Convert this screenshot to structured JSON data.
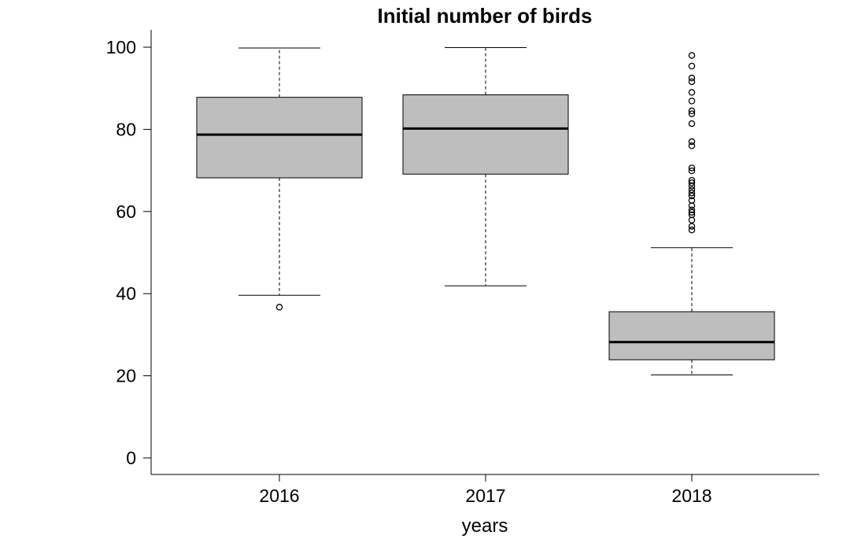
{
  "chart_data": {
    "type": "box",
    "title": "Initial number of birds",
    "xlabel": "years",
    "ylabel": "",
    "ylim": [
      -4,
      104
    ],
    "yticks": [
      0,
      20,
      40,
      60,
      80,
      100
    ],
    "ytick_labels": [
      "0",
      "20",
      "40",
      "60",
      "80",
      "100"
    ],
    "categories": [
      "2016",
      "2017",
      "2018"
    ],
    "box_color": "#bebebe",
    "grid": false,
    "boxes": [
      {
        "category": "2016",
        "whisker_low": 39.6,
        "q1": 68.2,
        "median": 78.7,
        "q3": 87.8,
        "whisker_high": 99.8,
        "outliers": [
          36.7
        ]
      },
      {
        "category": "2017",
        "whisker_low": 41.9,
        "q1": 69.1,
        "median": 80.2,
        "q3": 88.4,
        "whisker_high": 99.9,
        "outliers": []
      },
      {
        "category": "2018",
        "whisker_low": 20.2,
        "q1": 23.9,
        "median": 28.2,
        "q3": 35.6,
        "whisker_high": 51.2,
        "outliers": [
          98.0,
          95.4,
          92.5,
          91.6,
          89.0,
          86.9,
          84.5,
          83.8,
          81.4,
          77.0,
          76.0,
          70.6,
          69.9,
          67.6,
          67.0,
          66.2,
          65.3,
          64.5,
          63.8,
          62.7,
          61.4,
          60.4,
          59.8,
          59.2,
          57.9,
          56.4,
          55.5
        ]
      }
    ]
  }
}
